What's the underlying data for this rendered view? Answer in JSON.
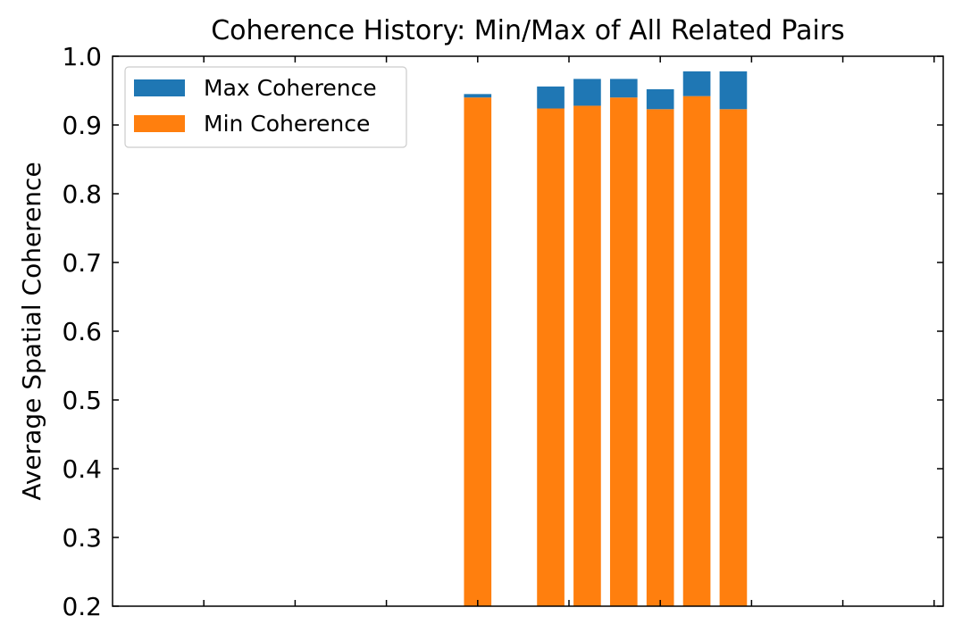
{
  "chart_data": {
    "type": "bar",
    "stacked": true,
    "title": "Coherence History: Min/Max of All Related Pairs",
    "xlabel": "",
    "ylabel": "Average Spatial Coherence",
    "ylim": [
      0.2,
      1.0
    ],
    "yticks": [
      "0.2",
      "0.3",
      "0.4",
      "0.5",
      "0.6",
      "0.7",
      "0.8",
      "0.9",
      "1.0"
    ],
    "xticks_labeled": false,
    "legend_position": "top-left",
    "bars": [
      {
        "x": 4.0,
        "min": 0.94,
        "max": 0.945
      },
      {
        "x": 4.8,
        "min": 0.924,
        "max": 0.956
      },
      {
        "x": 5.2,
        "min": 0.928,
        "max": 0.967
      },
      {
        "x": 5.6,
        "min": 0.94,
        "max": 0.967
      },
      {
        "x": 6.0,
        "min": 0.923,
        "max": 0.952
      },
      {
        "x": 6.4,
        "min": 0.942,
        "max": 0.978
      },
      {
        "x": 6.8,
        "min": 0.923,
        "max": 0.978
      }
    ],
    "series": [
      {
        "name": "Max Coherence",
        "color": "#1f77b4"
      },
      {
        "name": "Min Coherence",
        "color": "#ff7f0e"
      }
    ]
  }
}
